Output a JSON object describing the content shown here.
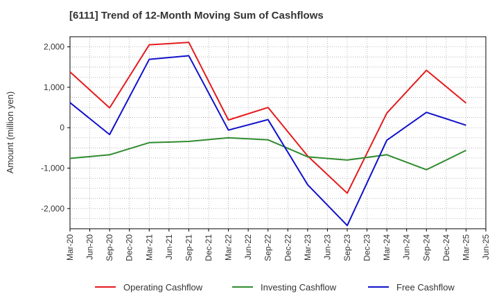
{
  "chart_data": {
    "type": "line",
    "title": "[6111]  Trend of 12-Month Moving Sum of Cashflows",
    "ylabel": "Amount (million yen)",
    "xlabel": "",
    "ylim": [
      -2500,
      2250
    ],
    "yticks": [
      -2000,
      -1000,
      0,
      1000,
      2000
    ],
    "ytick_labels": [
      "-2,000",
      "-1,000",
      "0",
      "1,000",
      "2,000"
    ],
    "xtick_labels": [
      "Mar-20",
      "Jun-20",
      "Sep-20",
      "Dec-20",
      "Mar-21",
      "Jun-21",
      "Sep-21",
      "Dec-21",
      "Mar-22",
      "Jun-22",
      "Sep-22",
      "Dec-22",
      "Mar-23",
      "Jun-23",
      "Sep-23",
      "Dec-23",
      "Mar-24",
      "Jun-24",
      "Sep-24",
      "Dec-24",
      "Mar-25",
      "Jun-25"
    ],
    "grid": true,
    "legend_position": "bottom",
    "x": [
      "Mar-20",
      "Sep-20",
      "Mar-21",
      "Sep-21",
      "Mar-22",
      "Sep-22",
      "Mar-23",
      "Sep-23",
      "Mar-24",
      "Sep-24",
      "Mar-25"
    ],
    "series": [
      {
        "name": "Operating Cashflow",
        "color": "#e41a1c",
        "values": [
          1380,
          490,
          2050,
          2110,
          190,
          500,
          -700,
          -1620,
          360,
          1420,
          610
        ]
      },
      {
        "name": "Investing Cashflow",
        "color": "#2e8b2e",
        "values": [
          -760,
          -670,
          -370,
          -340,
          -250,
          -300,
          -720,
          -800,
          -670,
          -1040,
          -560
        ]
      },
      {
        "name": "Free Cashflow",
        "color": "#1010cc",
        "values": [
          620,
          -170,
          1690,
          1780,
          -60,
          200,
          -1410,
          -2420,
          -310,
          380,
          60
        ]
      }
    ]
  }
}
